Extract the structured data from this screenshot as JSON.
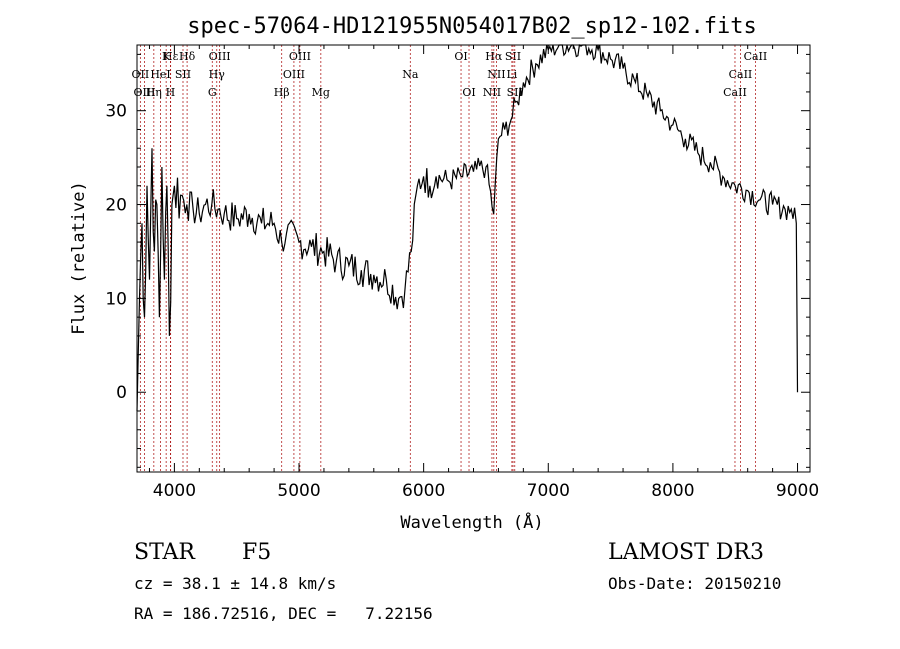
{
  "chart_data": {
    "type": "line",
    "title": "spec-57064-HD121955N054017B02_sp12-102.fits",
    "xlabel": "Wavelength (Å)",
    "ylabel": "Flux (relative)",
    "xlim": [
      3700,
      9100
    ],
    "ylim": [
      -8.5,
      37
    ],
    "xticks": [
      4000,
      5000,
      6000,
      7000,
      8000,
      9000
    ],
    "yticks": [
      0,
      10,
      20,
      30
    ],
    "grid": false,
    "series": [
      {
        "color": "#000000",
        "x": [
          3700,
          3720,
          3740,
          3760,
          3780,
          3800,
          3820,
          3840,
          3860,
          3880,
          3900,
          3920,
          3940,
          3960,
          3980,
          4000,
          4050,
          4100,
          4150,
          4200,
          4250,
          4300,
          4350,
          4400,
          4500,
          4600,
          4700,
          4800,
          4861,
          4900,
          5000,
          5100,
          5200,
          5300,
          5400,
          5500,
          5600,
          5700,
          5800,
          5850,
          5900,
          5950,
          6000,
          6050,
          6100,
          6200,
          6300,
          6400,
          6500,
          6562,
          6600,
          6650,
          6700,
          6750,
          6800,
          6900,
          7000,
          7100,
          7200,
          7300,
          7400,
          7500,
          7600,
          7700,
          7800,
          7900,
          8000,
          8100,
          8200,
          8300,
          8400,
          8500,
          8600,
          8700,
          8800,
          8900,
          8950,
          8990,
          9000
        ],
        "y": [
          -2,
          10,
          18,
          8,
          22,
          12,
          26,
          15,
          20,
          8,
          24,
          12,
          22,
          6,
          20,
          22,
          21,
          20,
          19.5,
          19,
          20,
          20,
          19.5,
          19,
          18.5,
          19,
          18,
          18,
          16,
          17,
          16,
          15.5,
          15,
          14,
          13.5,
          13,
          12.5,
          12,
          10,
          11,
          15,
          22,
          23,
          22,
          23,
          22.5,
          23,
          23.5,
          24,
          19,
          27,
          28,
          29,
          31,
          33,
          35,
          36.5,
          37,
          37,
          37,
          36.5,
          35.5,
          34.5,
          33,
          31.5,
          30,
          28.5,
          27,
          25.5,
          24.5,
          23,
          22,
          21.5,
          20.5,
          20,
          19.5,
          19.5,
          18,
          0
        ]
      }
    ],
    "lines": [
      {
        "label": "Hε",
        "x": 3970,
        "row": 0
      },
      {
        "label": "K",
        "x": 3934,
        "row": 0
      },
      {
        "label": "Hδ",
        "x": 4102,
        "row": 0
      },
      {
        "label": "OIII",
        "x": 4363,
        "row": 0
      },
      {
        "label": "OIII",
        "x": 5007,
        "row": 0
      },
      {
        "label": "OI",
        "x": 6300,
        "row": 0
      },
      {
        "label": "Hα",
        "x": 6563,
        "row": 0
      },
      {
        "label": "SII",
        "x": 6717,
        "row": 0
      },
      {
        "label": "CaII",
        "x": 8662,
        "row": 0
      },
      {
        "label": "OII",
        "x": 3727,
        "row": 1
      },
      {
        "label": "HeI",
        "x": 3889,
        "row": 1
      },
      {
        "label": "SII",
        "x": 4069,
        "row": 1
      },
      {
        "label": "Hγ",
        "x": 4340,
        "row": 1
      },
      {
        "label": "OIII",
        "x": 4959,
        "row": 1
      },
      {
        "label": "Na",
        "x": 5893,
        "row": 1
      },
      {
        "label": "NII",
        "x": 6584,
        "row": 1
      },
      {
        "label": "Li",
        "x": 6708,
        "row": 1
      },
      {
        "label": "CaII",
        "x": 8542,
        "row": 1
      },
      {
        "label": "OIII",
        "x": 3760,
        "row": 2
      },
      {
        "label": "Hη",
        "x": 3835,
        "row": 2
      },
      {
        "label": "H",
        "x": 3968,
        "row": 2
      },
      {
        "label": "G",
        "x": 4304,
        "row": 2
      },
      {
        "label": "Hβ",
        "x": 4861,
        "row": 2
      },
      {
        "label": "Mg",
        "x": 5175,
        "row": 2
      },
      {
        "label": "OI",
        "x": 6364,
        "row": 2
      },
      {
        "label": "NII",
        "x": 6548,
        "row": 2
      },
      {
        "label": "SII",
        "x": 6731,
        "row": 2
      },
      {
        "label": "CaII",
        "x": 8498,
        "row": 2
      }
    ]
  },
  "info": {
    "object_class": "STAR",
    "subclass": "F5",
    "survey": "LAMOST DR3",
    "velocity": "cz = 38.1 ± 14.8 km/s",
    "obs_date": "Obs-Date: 20150210",
    "coordinates": "RA = 186.72516, DEC =   7.22156"
  }
}
